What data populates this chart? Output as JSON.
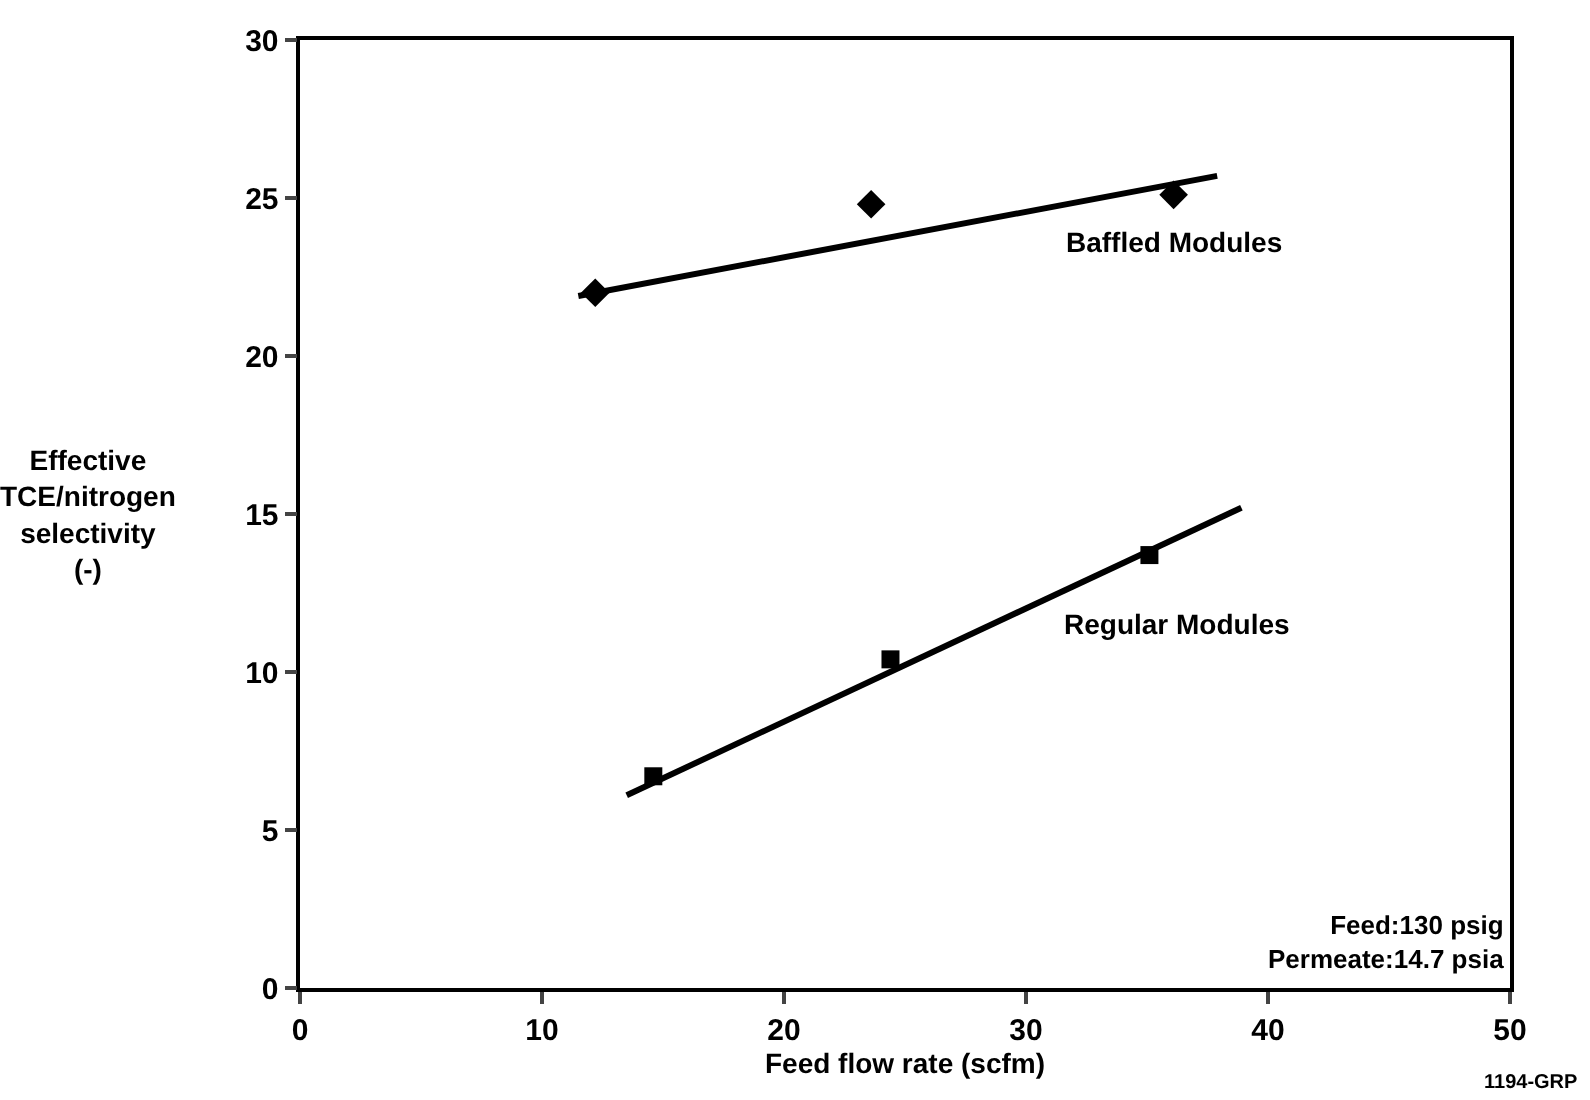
{
  "chart_data": {
    "type": "scatter",
    "xlabel": "Feed flow rate (scfm)",
    "ylabel": "Effective\nTCE/nitrogen\nselectivity\n(-)",
    "xlim": [
      0,
      50
    ],
    "xticks": [
      0,
      10,
      20,
      30,
      40,
      50
    ],
    "ylim": [
      0,
      30
    ],
    "yticks": [
      0,
      5,
      10,
      15,
      20,
      25,
      30
    ],
    "legend": false,
    "series": [
      {
        "name": "Baffled Modules",
        "marker": "diamond",
        "color": "#000000",
        "x": [
          12.2,
          23.6,
          36.1
        ],
        "values": [
          22.0,
          24.8,
          25.1
        ]
      },
      {
        "type": "line",
        "marker": "none",
        "color": "#000000",
        "x": [
          11.5,
          37.9
        ],
        "values": [
          21.9,
          25.7
        ]
      },
      {
        "name": "Regular Modules",
        "marker": "square",
        "color": "#000000",
        "x": [
          14.6,
          24.4,
          35.1
        ],
        "values": [
          6.7,
          10.4,
          13.7
        ]
      },
      {
        "type": "line",
        "marker": "none",
        "color": "#000000",
        "x": [
          13.5,
          38.9
        ],
        "values": [
          6.1,
          15.2
        ]
      }
    ],
    "annotations": [
      "Feed:130 psig\nPermeate:14.7 psia",
      "1194-GRP"
    ]
  }
}
